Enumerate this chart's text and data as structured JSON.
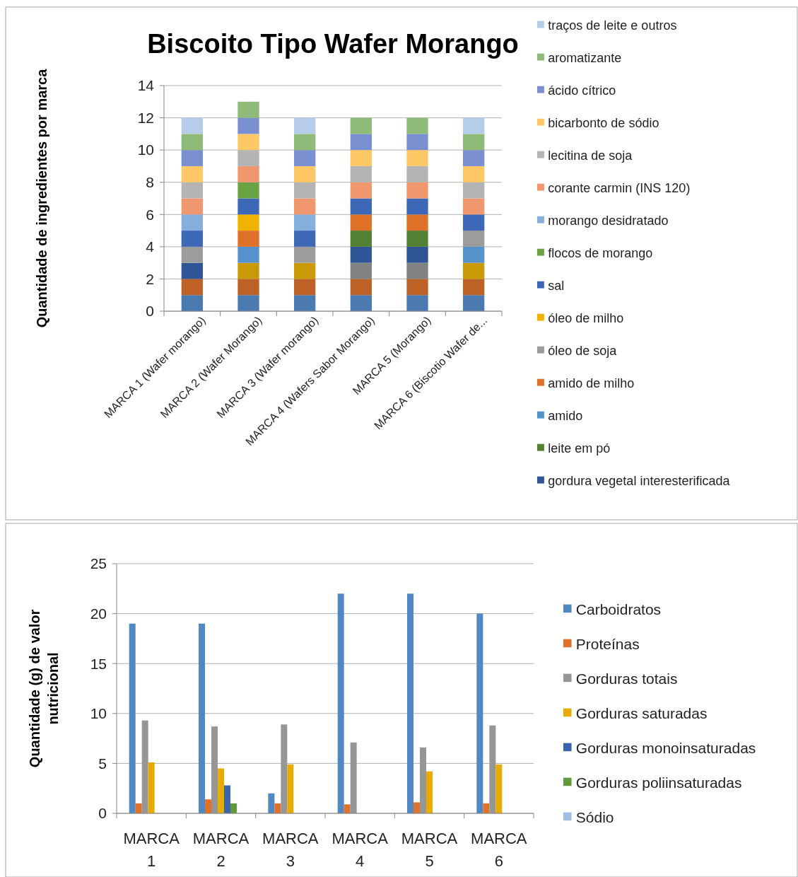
{
  "chart_data": [
    {
      "type": "bar",
      "title": "Biscoito Tipo Wafer Morango",
      "ylabel": "Quantidade de ingredientes por marca",
      "stacked": true,
      "legend": "right",
      "grid": "y",
      "categories": [
        "MARCA 1 (Wafer morango)",
        "MARCA 2 (Wafer Morango)",
        "MARCA 3 (Wafer morango)",
        "MARCA 4 (Wafers Sabor Morango)",
        "MARCA 5 (Morango)",
        "MARCA 6 (Biscotio Wafer de..."
      ],
      "ylim": [
        0,
        14
      ],
      "yticks": [
        0,
        2,
        4,
        6,
        8,
        10,
        12,
        14
      ],
      "series": [
        {
          "color": "#4a7ab0",
          "values": [
            1,
            1,
            1,
            1,
            1,
            1
          ]
        },
        {
          "color": "#bd6126",
          "values": [
            1,
            1,
            1,
            1,
            1,
            1
          ]
        },
        {
          "color": "#828282",
          "values": [
            0,
            0,
            0,
            1,
            1,
            0
          ]
        },
        {
          "color": "#c99a06",
          "values": [
            0,
            1,
            1,
            0,
            0,
            1
          ]
        },
        {
          "name": "gordura vegetal interesterificada",
          "color": "#2f5597",
          "values": [
            1,
            0,
            0,
            1,
            1,
            0
          ]
        },
        {
          "name": "leite em pó",
          "color": "#548235",
          "values": [
            0,
            0,
            0,
            1,
            1,
            0
          ]
        },
        {
          "name": "amido",
          "color": "#5592cb",
          "values": [
            0,
            1,
            0,
            0,
            0,
            1
          ]
        },
        {
          "name": "amido de milho",
          "color": "#e07128",
          "values": [
            0,
            1,
            0,
            1,
            1,
            0
          ]
        },
        {
          "name": "óleo de soja",
          "color": "#9c9c9c",
          "values": [
            1,
            0,
            1,
            0,
            0,
            1
          ]
        },
        {
          "name": "óleo de milho",
          "color": "#f0b400",
          "values": [
            0,
            1,
            0,
            0,
            0,
            0
          ]
        },
        {
          "name": "sal",
          "color": "#3d68b7",
          "values": [
            1,
            1,
            1,
            1,
            1,
            1
          ]
        },
        {
          "name": "flocos de morango",
          "color": "#6aa343",
          "values": [
            0,
            1,
            0,
            0,
            0,
            0
          ]
        },
        {
          "name": "morango desidratado",
          "color": "#86afde",
          "values": [
            1,
            0,
            1,
            0,
            0,
            0
          ]
        },
        {
          "name": "corante carmin (INS 120)",
          "color": "#f1976e",
          "values": [
            1,
            1,
            1,
            1,
            1,
            1
          ]
        },
        {
          "name": "lecitina de soja",
          "color": "#b4b4b4",
          "values": [
            1,
            1,
            1,
            1,
            1,
            1
          ]
        },
        {
          "name": "bicarbonto de sódio",
          "color": "#ffc866",
          "values": [
            1,
            1,
            1,
            1,
            1,
            1
          ]
        },
        {
          "name": "ácido cítrico",
          "color": "#7a8fd0",
          "values": [
            1,
            1,
            1,
            1,
            1,
            1
          ]
        },
        {
          "name": "aromatizante",
          "color": "#8fbb78",
          "values": [
            1,
            1,
            1,
            1,
            1,
            1
          ]
        },
        {
          "name": "traços de leite e outros",
          "color": "#b6cde9",
          "values": [
            1,
            0,
            1,
            0,
            0,
            1
          ]
        }
      ]
    },
    {
      "type": "bar",
      "ylabel": "Quantidade (g) de valor nutricional",
      "legend": "right",
      "grid": "y",
      "categories": [
        "MARCA 1",
        "MARCA 2",
        "MARCA 3",
        "MARCA 4",
        "MARCA 5",
        "MARCA 6"
      ],
      "ylim": [
        0,
        25
      ],
      "yticks": [
        0,
        5,
        10,
        15,
        20,
        25
      ],
      "series": [
        {
          "name": "Carboidratos",
          "color": "#4f88c2",
          "values": [
            19,
            19,
            2,
            22,
            22,
            20
          ]
        },
        {
          "name": "Proteínas",
          "color": "#e07128",
          "values": [
            1,
            1.4,
            1,
            0.9,
            1.1,
            1
          ]
        },
        {
          "name": "Gorduras totais",
          "color": "#969696",
          "values": [
            9.3,
            8.7,
            8.9,
            7.1,
            6.6,
            8.8
          ]
        },
        {
          "name": "Gorduras saturadas",
          "color": "#e8ab00",
          "values": [
            5.1,
            4.5,
            4.9,
            null,
            4.2,
            4.9
          ]
        },
        {
          "name": "Gorduras monoinsaturadas",
          "color": "#3b64b0",
          "values": [
            null,
            2.8,
            null,
            null,
            null,
            null
          ]
        },
        {
          "name": "Gorduras poliinsaturadas",
          "color": "#5f9a3a",
          "values": [
            null,
            1,
            null,
            null,
            null,
            null
          ]
        },
        {
          "name": "Sódio",
          "color": "#a0bde6",
          "values": [
            null,
            null,
            null,
            null,
            null,
            null
          ]
        }
      ]
    }
  ]
}
